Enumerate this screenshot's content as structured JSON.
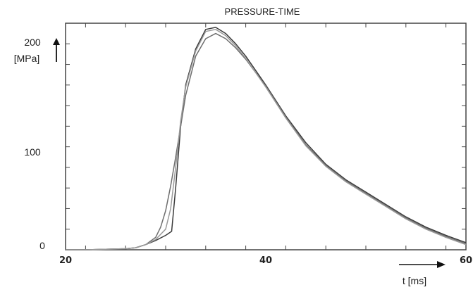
{
  "chart_data": {
    "type": "line",
    "title": "PRESSURE-TIME",
    "xlabel": "t [ms]",
    "ylabel": "[MPa]",
    "xlim": [
      20,
      60
    ],
    "ylim": [
      0,
      220
    ],
    "x_ticks": [
      20,
      40,
      60
    ],
    "y_ticks": [
      0,
      100,
      200
    ],
    "grid": false,
    "series": [
      {
        "color": "#3a3a3a",
        "x": [
          20,
          22,
          24,
          26,
          27,
          28,
          29,
          30,
          30.6,
          31,
          31.5,
          32,
          33,
          34,
          35,
          36,
          37,
          38,
          39,
          40,
          42,
          44,
          46,
          48,
          50,
          52,
          54,
          56,
          58,
          60
        ],
        "y": [
          0,
          0,
          0.5,
          1,
          2,
          5,
          9,
          14,
          18,
          60,
          120,
          160,
          195,
          214,
          216,
          210,
          200,
          188,
          174,
          160,
          130,
          104,
          83,
          68,
          56,
          44,
          32,
          22,
          14,
          7
        ]
      },
      {
        "color": "#6e6e6e",
        "x": [
          20,
          22,
          24,
          26,
          27,
          28,
          29,
          29.5,
          30,
          30.5,
          31,
          31.5,
          32,
          33,
          34,
          35,
          36,
          37,
          38,
          39,
          40,
          42,
          44,
          46,
          48,
          50,
          52,
          54,
          56,
          58,
          60
        ],
        "y": [
          0,
          0,
          0.5,
          1,
          2,
          5,
          12,
          22,
          38,
          62,
          90,
          120,
          150,
          188,
          205,
          210,
          205,
          196,
          185,
          172,
          159,
          129,
          102,
          82,
          67,
          55,
          43,
          31,
          21,
          13,
          6
        ]
      },
      {
        "color": "#9a9a9a",
        "x": [
          20,
          22,
          24,
          26,
          27,
          28,
          29,
          30,
          30.5,
          31,
          31.5,
          32,
          33,
          34,
          35,
          36,
          37,
          38,
          39,
          40,
          42,
          44,
          46,
          48,
          50,
          52,
          54,
          56,
          58,
          60
        ],
        "y": [
          0,
          0,
          0.5,
          1,
          2,
          5,
          10,
          20,
          40,
          80,
          125,
          158,
          193,
          212,
          214,
          208,
          198,
          186,
          172,
          158,
          128,
          101,
          81,
          66,
          54,
          42,
          30,
          20,
          12,
          5
        ]
      }
    ]
  }
}
